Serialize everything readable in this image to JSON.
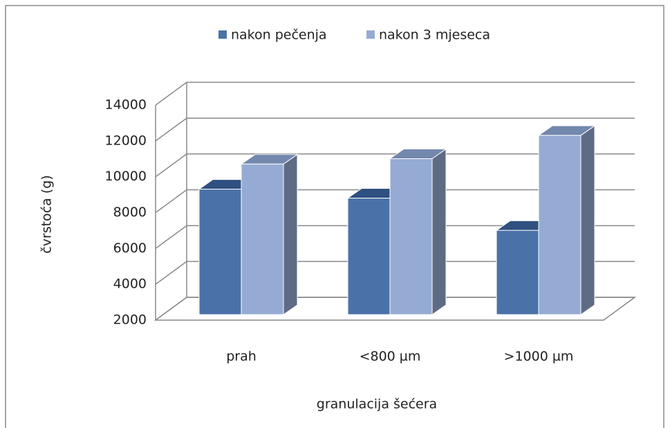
{
  "chart_data": {
    "type": "bar3d",
    "categories": [
      "prah",
      "<800 µm",
      ">1000 µm"
    ],
    "series": [
      {
        "name": "nakon pečenja",
        "color": "#4a72a8",
        "values": [
          9000,
          8500,
          6700
        ]
      },
      {
        "name": "nakon 3 mjeseca",
        "color": "#95abd3",
        "values": [
          10400,
          10700,
          12000
        ]
      }
    ],
    "y_label": "čvrstoća (g)",
    "x_label": "granulacija šećera",
    "ylim": [
      2000,
      14000
    ],
    "yticks": [
      2000,
      4000,
      6000,
      8000,
      10000,
      12000,
      14000
    ],
    "grid": true,
    "legend": "top"
  }
}
